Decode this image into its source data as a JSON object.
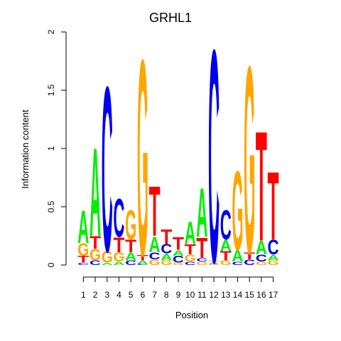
{
  "chart_data": {
    "type": "sequence-logo",
    "title": "GRHL1",
    "xlabel": "Position",
    "ylabel": "Information content",
    "ylim": [
      0,
      2
    ],
    "yticks": [
      "0",
      "0.5",
      "1",
      "1.5",
      "2"
    ],
    "positions": [
      "1",
      "2",
      "3",
      "4",
      "5",
      "6",
      "7",
      "8",
      "9",
      "10",
      "11",
      "12",
      "13",
      "14",
      "15",
      "16",
      "17"
    ],
    "colors": {
      "A": "#00ee00",
      "C": "#0000ee",
      "G": "#ffa500",
      "T": "#ff0000"
    },
    "letters": [
      [
        [
          "C",
          0.02
        ],
        [
          "T",
          0.06
        ],
        [
          "G",
          0.11
        ],
        [
          "A",
          0.29
        ]
      ],
      [
        [
          "C",
          0.04
        ],
        [
          "G",
          0.1
        ],
        [
          "T",
          0.11
        ],
        [
          "A",
          0.78
        ]
      ],
      [
        [
          "A",
          0.02
        ],
        [
          "G",
          0.1
        ],
        [
          "C",
          1.46
        ]
      ],
      [
        [
          "A",
          0.03
        ],
        [
          "G",
          0.08
        ],
        [
          "T",
          0.13
        ],
        [
          "C",
          0.34
        ]
      ],
      [
        [
          "C",
          0.04
        ],
        [
          "A",
          0.07
        ],
        [
          "T",
          0.11
        ],
        [
          "G",
          0.26
        ]
      ],
      [
        [
          "C",
          0.01
        ],
        [
          "A",
          0.03
        ],
        [
          "T",
          0.05
        ],
        [
          "G",
          1.73
        ]
      ],
      [
        [
          "G",
          0.05
        ],
        [
          "C",
          0.06
        ],
        [
          "A",
          0.14
        ],
        [
          "T",
          0.44
        ]
      ],
      [
        [
          "G",
          0.04
        ],
        [
          "A",
          0.06
        ],
        [
          "C",
          0.08
        ],
        [
          "T",
          0.13
        ]
      ],
      [
        [
          "G",
          0.02
        ],
        [
          "C",
          0.06
        ],
        [
          "A",
          0.05
        ],
        [
          "T",
          0.11
        ]
      ],
      [
        [
          "C",
          0.03
        ],
        [
          "G",
          0.06
        ],
        [
          "T",
          0.09
        ],
        [
          "A",
          0.2
        ]
      ],
      [
        [
          "G",
          0.03
        ],
        [
          "C",
          0.03
        ],
        [
          "T",
          0.18
        ],
        [
          "A",
          0.43
        ]
      ],
      [
        [
          "G",
          0.01
        ],
        [
          "A",
          0.01
        ],
        [
          "T",
          0.01
        ],
        [
          "C",
          1.88
        ]
      ],
      [
        [
          "G",
          0.04
        ],
        [
          "T",
          0.08
        ],
        [
          "A",
          0.1
        ],
        [
          "C",
          0.26
        ]
      ],
      [
        [
          "C",
          0.03
        ],
        [
          "A",
          0.1
        ],
        [
          "G",
          0.7
        ]
      ],
      [
        [
          "C",
          0.05
        ],
        [
          "T",
          0.06
        ],
        [
          "G",
          1.65
        ]
      ],
      [
        [
          "G",
          0.03
        ],
        [
          "C",
          0.06
        ],
        [
          "A",
          0.12
        ],
        [
          "T",
          0.97
        ]
      ],
      [
        [
          "G",
          0.04
        ],
        [
          "A",
          0.05
        ],
        [
          "C",
          0.13
        ],
        [
          "T",
          0.6
        ]
      ]
    ]
  }
}
